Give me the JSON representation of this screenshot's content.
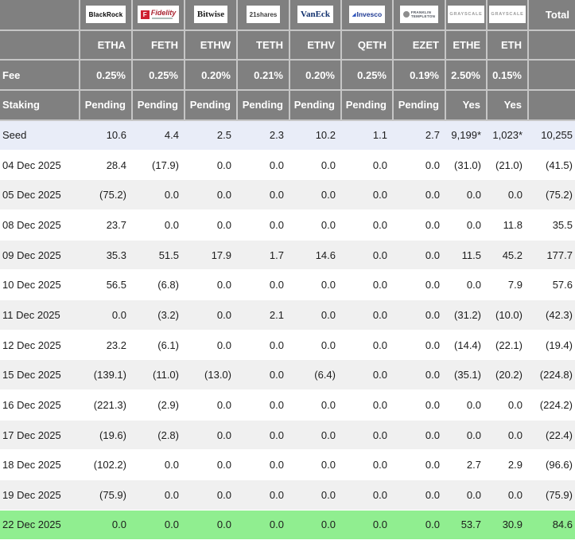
{
  "colors": {
    "header_bg": "#808080",
    "header_border": "#c6c6c6",
    "header_text": "#ffffff",
    "seed_row_bg": "#e9edf8",
    "row_bg": "#ffffff",
    "row_alt_bg": "#f0f0f0",
    "latest_row_bg": "#90ee90",
    "negative_text": "#ff0000",
    "value_text": "#1c1c1c"
  },
  "header": {
    "fee_label": "Fee",
    "staking_label": "Staking",
    "total_label": "Total"
  },
  "chart_data": {
    "type": "table",
    "columns": [
      {
        "provider": "BlackRock",
        "logo": "blackrock",
        "ticker": "ETHA",
        "fee": "0.25%",
        "staking": "Pending"
      },
      {
        "provider": "Fidelity",
        "logo": "fidelity",
        "ticker": "FETH",
        "fee": "0.25%",
        "staking": "Pending"
      },
      {
        "provider": "Bitwise",
        "logo": "bitwise",
        "ticker": "ETHW",
        "fee": "0.20%",
        "staking": "Pending"
      },
      {
        "provider": "21shares",
        "logo": "21shares",
        "ticker": "TETH",
        "fee": "0.21%",
        "staking": "Pending"
      },
      {
        "provider": "VanEck",
        "logo": "vaneck",
        "ticker": "ETHV",
        "fee": "0.20%",
        "staking": "Pending"
      },
      {
        "provider": "Invesco",
        "logo": "invesco",
        "ticker": "QETH",
        "fee": "0.25%",
        "staking": "Pending"
      },
      {
        "provider": "FRANKLIN TEMPLETON",
        "logo": "franklin",
        "ticker": "EZET",
        "fee": "0.19%",
        "staking": "Pending"
      },
      {
        "provider": "GRAYSCALE",
        "logo": "grayscale",
        "ticker": "ETHE",
        "fee": "2.50%",
        "staking": "Yes"
      },
      {
        "provider": "GRAYSCALE",
        "logo": "grayscale",
        "ticker": "ETH",
        "fee": "0.15%",
        "staking": "Yes"
      }
    ],
    "rows": [
      {
        "label": "Seed",
        "style": "seed",
        "values": [
          "10.6",
          "4.4",
          "2.5",
          "2.3",
          "10.2",
          "1.1",
          "2.7",
          "9,199*",
          "1,023*"
        ],
        "total": "10,255"
      },
      {
        "label": "04 Dec 2025",
        "style": "plain",
        "values": [
          "28.4",
          "(17.9)",
          "0.0",
          "0.0",
          "0.0",
          "0.0",
          "0.0",
          "(31.0)",
          "(21.0)"
        ],
        "total": "(41.5)"
      },
      {
        "label": "05 Dec 2025",
        "style": "alt",
        "values": [
          "(75.2)",
          "0.0",
          "0.0",
          "0.0",
          "0.0",
          "0.0",
          "0.0",
          "0.0",
          "0.0"
        ],
        "total": "(75.2)"
      },
      {
        "label": "08 Dec 2025",
        "style": "plain",
        "values": [
          "23.7",
          "0.0",
          "0.0",
          "0.0",
          "0.0",
          "0.0",
          "0.0",
          "0.0",
          "11.8"
        ],
        "total": "35.5"
      },
      {
        "label": "09 Dec 2025",
        "style": "alt",
        "values": [
          "35.3",
          "51.5",
          "17.9",
          "1.7",
          "14.6",
          "0.0",
          "0.0",
          "11.5",
          "45.2"
        ],
        "total": "177.7"
      },
      {
        "label": "10 Dec 2025",
        "style": "plain",
        "values": [
          "56.5",
          "(6.8)",
          "0.0",
          "0.0",
          "0.0",
          "0.0",
          "0.0",
          "0.0",
          "7.9"
        ],
        "total": "57.6"
      },
      {
        "label": "11 Dec 2025",
        "style": "alt",
        "values": [
          "0.0",
          "(3.2)",
          "0.0",
          "2.1",
          "0.0",
          "0.0",
          "0.0",
          "(31.2)",
          "(10.0)"
        ],
        "total": "(42.3)"
      },
      {
        "label": "12 Dec 2025",
        "style": "plain",
        "values": [
          "23.2",
          "(6.1)",
          "0.0",
          "0.0",
          "0.0",
          "0.0",
          "0.0",
          "(14.4)",
          "(22.1)"
        ],
        "total": "(19.4)"
      },
      {
        "label": "15 Dec 2025",
        "style": "alt",
        "values": [
          "(139.1)",
          "(11.0)",
          "(13.0)",
          "0.0",
          "(6.4)",
          "0.0",
          "0.0",
          "(35.1)",
          "(20.2)"
        ],
        "total": "(224.8)"
      },
      {
        "label": "16 Dec 2025",
        "style": "plain",
        "values": [
          "(221.3)",
          "(2.9)",
          "0.0",
          "0.0",
          "0.0",
          "0.0",
          "0.0",
          "0.0",
          "0.0"
        ],
        "total": "(224.2)"
      },
      {
        "label": "17 Dec 2025",
        "style": "alt",
        "values": [
          "(19.6)",
          "(2.8)",
          "0.0",
          "0.0",
          "0.0",
          "0.0",
          "0.0",
          "0.0",
          "0.0"
        ],
        "total": "(22.4)"
      },
      {
        "label": "18 Dec 2025",
        "style": "plain",
        "values": [
          "(102.2)",
          "0.0",
          "0.0",
          "0.0",
          "0.0",
          "0.0",
          "0.0",
          "2.7",
          "2.9"
        ],
        "total": "(96.6)"
      },
      {
        "label": "19 Dec 2025",
        "style": "alt",
        "values": [
          "(75.9)",
          "0.0",
          "0.0",
          "0.0",
          "0.0",
          "0.0",
          "0.0",
          "0.0",
          "0.0"
        ],
        "total": "(75.9)"
      },
      {
        "label": "22 Dec 2025",
        "style": "green",
        "values": [
          "0.0",
          "0.0",
          "0.0",
          "0.0",
          "0.0",
          "0.0",
          "0.0",
          "53.7",
          "30.9"
        ],
        "total": "84.6"
      }
    ],
    "negative_format": "parentheses",
    "legend_position": "none",
    "title": ""
  }
}
